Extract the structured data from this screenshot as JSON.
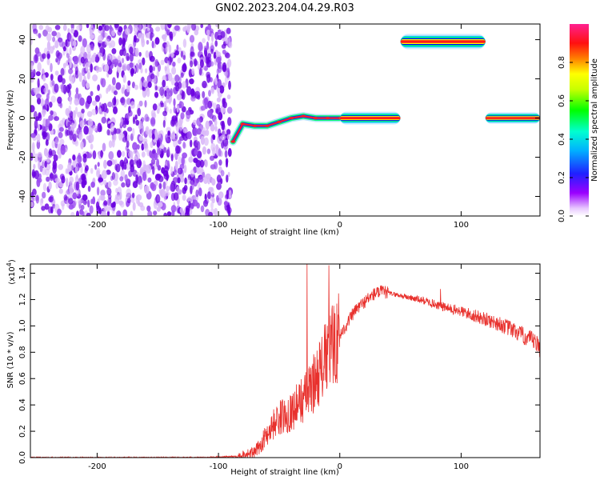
{
  "title": "GN02.2023.204.04.29.R03",
  "colors": {
    "snr_line": "#e8312d",
    "noise_dark": "#6a00e0",
    "noise_light": "#d9b8f8",
    "axis": "#000000"
  },
  "chart_data": [
    {
      "type": "heatmap",
      "xlabel": "Height of straight line (km)",
      "ylabel": "Frequency (Hz)",
      "xlim": [
        -255,
        165
      ],
      "ylim": [
        -50,
        48
      ],
      "xticks": [
        -200,
        -100,
        0,
        100
      ],
      "yticks": [
        -40,
        -20,
        0,
        20,
        40
      ],
      "colorbar": {
        "label": "Normalized spectral amplitude",
        "range": [
          0,
          1
        ],
        "ticks": [
          0.0,
          0.2,
          0.4,
          0.6,
          0.8
        ],
        "colormap": "rainbow (magenta-blue-cyan-green-yellow-red-pink)"
      },
      "features": [
        {
          "name": "noise",
          "x_range": [
            -255,
            -90
          ],
          "y_range": [
            -50,
            48
          ],
          "level": "low"
        },
        {
          "name": "ramp",
          "points": [
            [
              -88,
              -12
            ],
            [
              -80,
              -3
            ],
            [
              -70,
              -4
            ],
            [
              -60,
              -4
            ],
            [
              -50,
              -2
            ],
            [
              -40,
              0
            ],
            [
              -30,
              1
            ],
            [
              -20,
              0
            ],
            [
              -10,
              0
            ],
            [
              0,
              0
            ]
          ]
        },
        {
          "name": "band-main",
          "x_range": [
            0,
            50
          ],
          "y": 0,
          "level": "high"
        },
        {
          "name": "band-upper",
          "x_range": [
            50,
            120
          ],
          "y": 39,
          "level": "high"
        },
        {
          "name": "band-right",
          "x_range": [
            120,
            165
          ],
          "y": 0,
          "level": "high"
        }
      ]
    },
    {
      "type": "line",
      "xlabel": "Height of straight line (km)",
      "ylabel": "SNR (10 * v/v)",
      "scale_label": "(x10",
      "scale_exponent": "4",
      "close_paren": ")",
      "xlim": [
        -255,
        165
      ],
      "ylim": [
        0,
        1.47
      ],
      "xticks": [
        -200,
        -100,
        0,
        100
      ],
      "yticks": [
        0.0,
        0.2,
        0.4,
        0.6,
        0.8,
        1.0,
        1.2,
        1.4
      ],
      "series": [
        {
          "x": [
            -255,
            -200,
            -150,
            -110,
            -85,
            -70,
            -65,
            -60,
            -55,
            -50,
            -45,
            -40,
            -35,
            -30,
            -25,
            -20,
            -15,
            -10,
            -5,
            0,
            5,
            10,
            15,
            20,
            25,
            30,
            35,
            40,
            45,
            50,
            60,
            70,
            80,
            90,
            100,
            110,
            120,
            130,
            140,
            150,
            160,
            165
          ],
          "y": [
            0.0,
            0.0,
            0.0,
            0.0,
            0.01,
            0.04,
            0.1,
            0.18,
            0.25,
            0.3,
            0.32,
            0.35,
            0.4,
            0.45,
            0.5,
            0.6,
            0.68,
            0.78,
            0.87,
            0.93,
            1.0,
            1.08,
            1.14,
            1.18,
            1.22,
            1.25,
            1.26,
            1.25,
            1.24,
            1.23,
            1.21,
            1.19,
            1.16,
            1.13,
            1.11,
            1.08,
            1.05,
            1.02,
            0.98,
            0.93,
            0.88,
            0.83
          ]
        }
      ],
      "spikes": [
        {
          "x": -27,
          "y": 1.47
        },
        {
          "x": -9,
          "y": 1.46
        },
        {
          "x": 83,
          "y": 1.28
        }
      ]
    }
  ]
}
